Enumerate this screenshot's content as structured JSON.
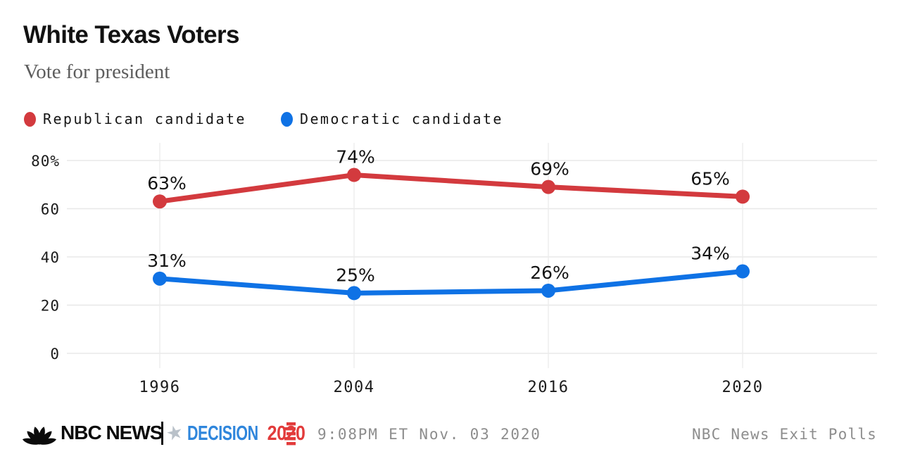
{
  "header": {
    "title": "White Texas Voters",
    "subtitle": "Vote for president"
  },
  "legend": {
    "items": [
      {
        "label": "Republican candidate",
        "color": "#d33a3e"
      },
      {
        "label": "Democratic candidate",
        "color": "#0f72e5"
      }
    ]
  },
  "chart_data": {
    "type": "line",
    "title": "White Texas Voters",
    "subtitle": "Vote for president",
    "categories": [
      "1996",
      "2004",
      "2016",
      "2020"
    ],
    "series": [
      {
        "name": "Republican candidate",
        "color": "#d33a3e",
        "values": [
          63,
          74,
          69,
          65
        ]
      },
      {
        "name": "Democratic candidate",
        "color": "#0f72e5",
        "values": [
          31,
          25,
          26,
          34
        ]
      }
    ],
    "unit": "%",
    "ylim": [
      0,
      80
    ],
    "yticks": [
      {
        "value": 80,
        "label": "80%"
      },
      {
        "value": 60,
        "label": "60"
      },
      {
        "value": 40,
        "label": "40"
      },
      {
        "value": 20,
        "label": "20"
      },
      {
        "value": 0,
        "label": "0"
      }
    ],
    "grid": true,
    "legend_position": "top",
    "data_labels": true,
    "xlabel": "",
    "ylabel": ""
  },
  "footer": {
    "brand": "NBC NEWS",
    "star_glyph": "★",
    "decision_label": "DECISION",
    "decision_year": "2020",
    "timestamp": "9:08PM ET Nov. 03 2020",
    "source": "NBC News Exit Polls"
  },
  "icons": {
    "peacock": "nbc-peacock-icon",
    "star": "decision-star-icon",
    "flag": "decision-flag-icon"
  },
  "colors": {
    "decision_blue": "#2f86dc",
    "decision_red": "#e23b3b",
    "star_gray": "#b9c1c9",
    "grid": "#e8e8e8",
    "tick_text": "#1b1b1b",
    "data_label_text": "#141414",
    "muted_text": "#8d8d8d"
  }
}
